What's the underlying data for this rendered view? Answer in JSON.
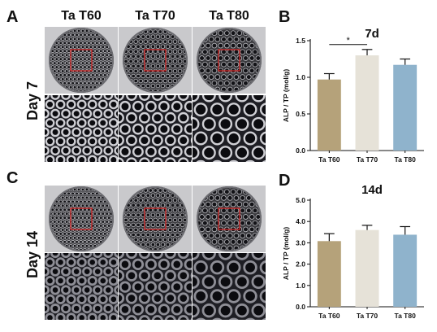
{
  "panels": {
    "A": "A",
    "B": "B",
    "C": "C",
    "D": "D"
  },
  "column_headers": [
    "Ta T60",
    "Ta T70",
    "Ta T80"
  ],
  "row_labels": {
    "top": "Day 7",
    "bottom": "Day 14"
  },
  "colors": {
    "T60": "#b5a27a",
    "T70": "#e6e2d8",
    "T80": "#8fb3cc",
    "roi_box": "#d42a2a"
  },
  "chart_data": [
    {
      "type": "bar",
      "title": "7d",
      "ylabel": "ALP / TP (mol/g)",
      "categories": [
        "Ta T60",
        "Ta T70",
        "Ta T80"
      ],
      "values": [
        0.97,
        1.3,
        1.17
      ],
      "errors": [
        0.08,
        0.08,
        0.08
      ],
      "ylim": [
        0,
        1.5
      ],
      "yticks": [
        "0.0",
        "0.5",
        "1.0",
        "1.5"
      ],
      "annotation": "*",
      "colors": [
        "#b5a27a",
        "#e6e2d8",
        "#8fb3cc"
      ]
    },
    {
      "type": "bar",
      "title": "14d",
      "ylabel": "ALP / TP (mol/g)",
      "categories": [
        "Ta T60",
        "Ta T70",
        "Ta T80"
      ],
      "values": [
        3.08,
        3.6,
        3.38
      ],
      "errors": [
        0.35,
        0.22,
        0.38
      ],
      "ylim": [
        0,
        5
      ],
      "yticks": [
        "0.0",
        "1.0",
        "2.0",
        "3.0",
        "4.0",
        "5.0"
      ],
      "colors": [
        "#b5a27a",
        "#e6e2d8",
        "#8fb3cc"
      ]
    }
  ]
}
